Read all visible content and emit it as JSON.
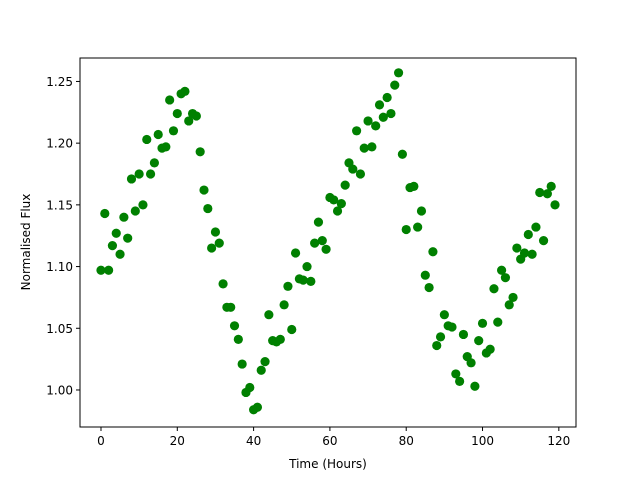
{
  "chart_data": {
    "type": "scatter",
    "title": "",
    "xlabel": "Time (Hours)",
    "ylabel": "Normalised Flux",
    "xlim": [
      -5.5,
      124.5
    ],
    "ylim": [
      0.97,
      1.269
    ],
    "xticks": [
      0,
      20,
      40,
      60,
      80,
      100,
      120
    ],
    "xtick_labels": [
      "0",
      "20",
      "40",
      "60",
      "80",
      "100",
      "120"
    ],
    "yticks": [
      1.0,
      1.05,
      1.1,
      1.15,
      1.2,
      1.25
    ],
    "ytick_labels": [
      "1.00",
      "1.05",
      "1.10",
      "1.15",
      "1.20",
      "1.25"
    ],
    "grid": false,
    "marker_color": "#008000",
    "series": [
      {
        "x": [
          0,
          1,
          2,
          3,
          4,
          5,
          6,
          7,
          8,
          9,
          10,
          11,
          12,
          13,
          14,
          15,
          16,
          17,
          18,
          19,
          20,
          21,
          22,
          23,
          24,
          25,
          26,
          27,
          28,
          29,
          30,
          31,
          32,
          33,
          34,
          35,
          36,
          37,
          38,
          39,
          40,
          41,
          42,
          43,
          44,
          45,
          46,
          47,
          48,
          49,
          50,
          51,
          52,
          53,
          54,
          55,
          56,
          57,
          58,
          59,
          60,
          61,
          62,
          63,
          64,
          65,
          66,
          67,
          68,
          69,
          70,
          71,
          72,
          73,
          74,
          75,
          76,
          77,
          78,
          79,
          80,
          81,
          82,
          83,
          84,
          85,
          86,
          87,
          88,
          89,
          90,
          91,
          92,
          93,
          94,
          95,
          96,
          97,
          98,
          99,
          100,
          101,
          102,
          103,
          104,
          105,
          106,
          107,
          108,
          109,
          110,
          111,
          112,
          113,
          114,
          115,
          116,
          117,
          118,
          119
        ],
        "y": [
          1.097,
          1.143,
          1.097,
          1.117,
          1.127,
          1.11,
          1.14,
          1.123,
          1.171,
          1.145,
          1.175,
          1.15,
          1.203,
          1.175,
          1.184,
          1.207,
          1.196,
          1.197,
          1.235,
          1.21,
          1.224,
          1.24,
          1.242,
          1.218,
          1.224,
          1.222,
          1.193,
          1.162,
          1.147,
          1.115,
          1.128,
          1.119,
          1.086,
          1.067,
          1.067,
          1.052,
          1.041,
          1.021,
          0.998,
          1.002,
          0.984,
          0.986,
          1.016,
          1.023,
          1.061,
          1.04,
          1.039,
          1.041,
          1.069,
          1.084,
          1.049,
          1.111,
          1.09,
          1.089,
          1.1,
          1.088,
          1.119,
          1.136,
          1.121,
          1.114,
          1.156,
          1.154,
          1.145,
          1.151,
          1.166,
          1.184,
          1.179,
          1.21,
          1.175,
          1.196,
          1.218,
          1.197,
          1.214,
          1.231,
          1.221,
          1.237,
          1.224,
          1.247,
          1.257,
          1.191,
          1.13,
          1.164,
          1.165,
          1.132,
          1.145,
          1.093,
          1.083,
          1.112,
          1.036,
          1.043,
          1.061,
          1.052,
          1.051,
          1.013,
          1.007,
          1.045,
          1.027,
          1.022,
          1.003,
          1.04,
          1.054,
          1.03,
          1.033,
          1.082,
          1.055,
          1.097,
          1.091,
          1.069,
          1.075,
          1.115,
          1.106,
          1.111,
          1.126,
          1.11,
          1.132,
          1.16,
          1.121,
          1.159,
          1.165,
          1.15
        ]
      }
    ]
  }
}
